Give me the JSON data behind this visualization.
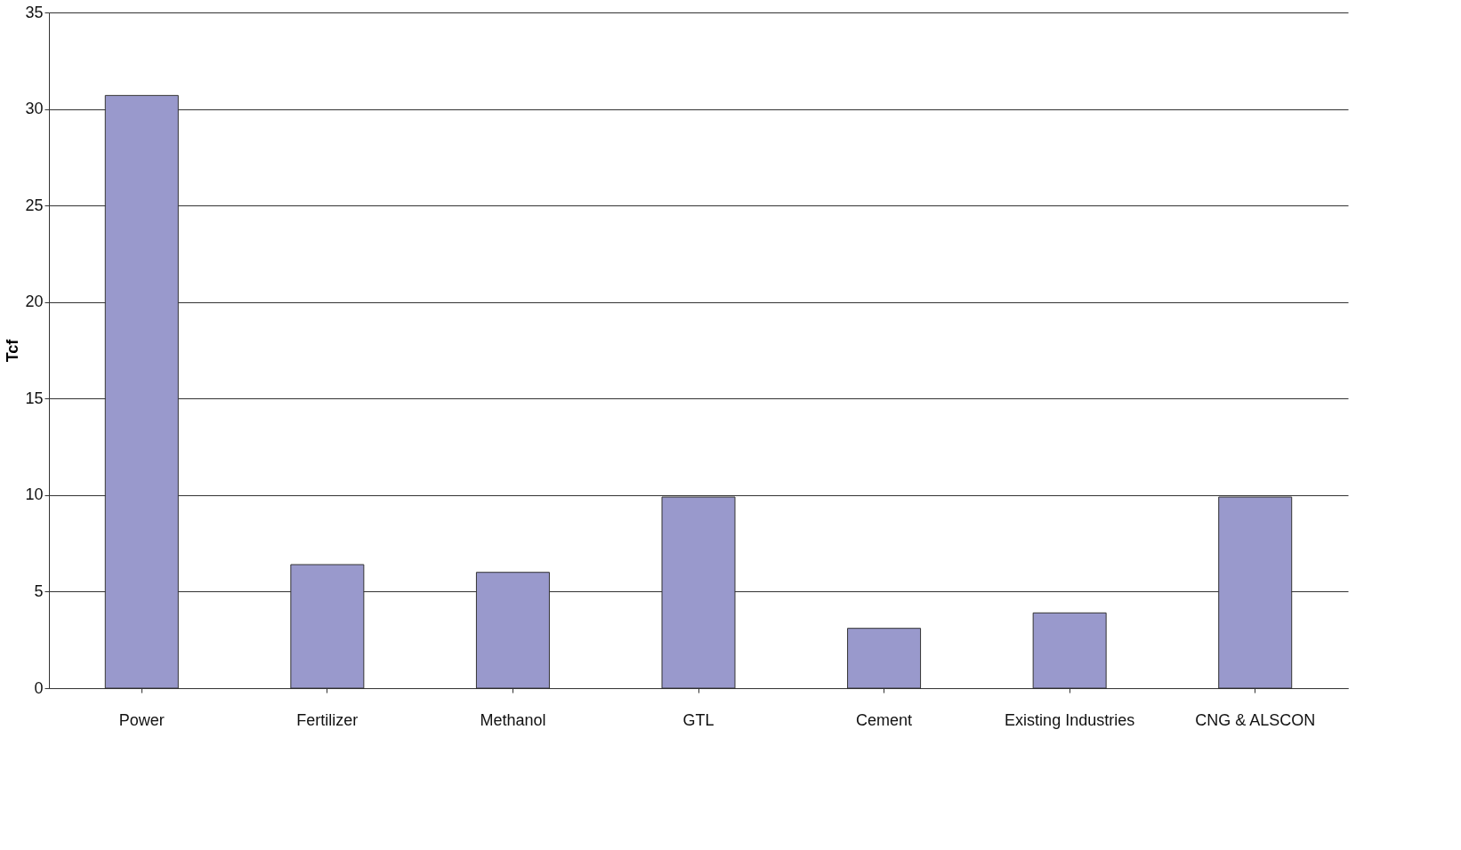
{
  "chart_data": {
    "type": "bar",
    "ylabel": "Tcf",
    "categories": [
      "Power",
      "Fertilizer",
      "Methanol",
      "GTL",
      "Cement",
      "Existing Industries",
      "CNG & ALSCON"
    ],
    "values": [
      30.7,
      6.4,
      6.0,
      9.9,
      3.1,
      3.9,
      9.9
    ],
    "color": "#9999cc",
    "ylim": [
      0,
      35
    ],
    "yticks": [
      0,
      5,
      10,
      15,
      20,
      25,
      30,
      35
    ],
    "grid": "y"
  }
}
